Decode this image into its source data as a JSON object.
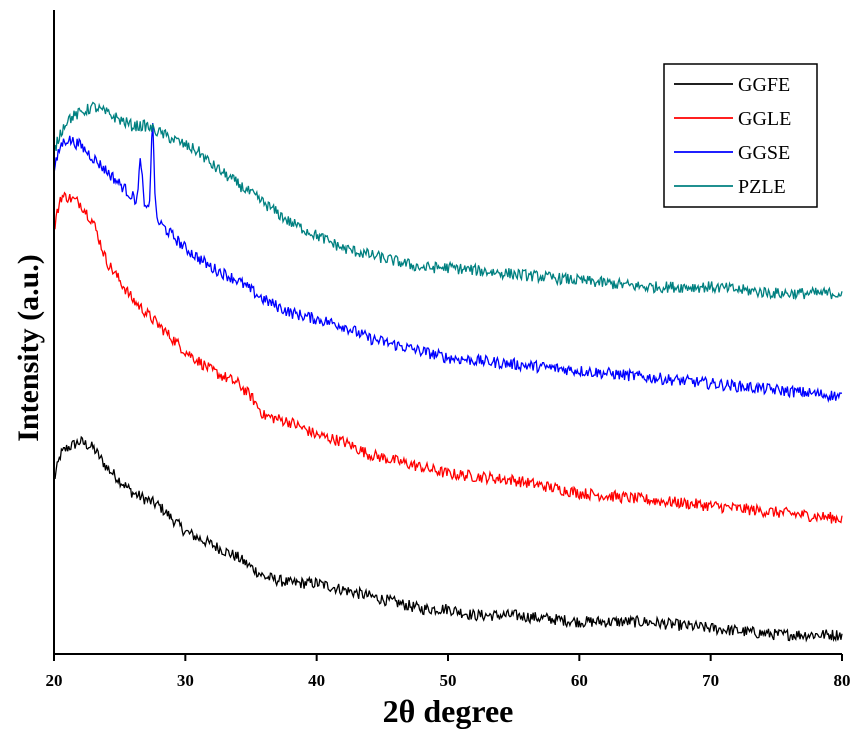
{
  "chart_data": {
    "type": "line",
    "title": "",
    "xlabel": "2θ degree",
    "ylabel": "Intensity (a.u.)",
    "xlim": [
      20,
      80
    ],
    "ylim": [
      0,
      1
    ],
    "x_ticks": [
      "20",
      "30",
      "40",
      "50",
      "60",
      "70",
      "80"
    ],
    "y_ticks_shown": false,
    "grid": false,
    "legend_position": "top-right",
    "series": [
      {
        "name": "GGFE",
        "color": "#000000",
        "points": [
          [
            20,
            0.27
          ],
          [
            20.5,
            0.31
          ],
          [
            21,
            0.32
          ],
          [
            22,
            0.33
          ],
          [
            23,
            0.32
          ],
          [
            24,
            0.29
          ],
          [
            25,
            0.27
          ],
          [
            26,
            0.25
          ],
          [
            27,
            0.24
          ],
          [
            28,
            0.23
          ],
          [
            29,
            0.21
          ],
          [
            30,
            0.19
          ],
          [
            32,
            0.17
          ],
          [
            34,
            0.15
          ],
          [
            36,
            0.12
          ],
          [
            38,
            0.11
          ],
          [
            40,
            0.11
          ],
          [
            42,
            0.1
          ],
          [
            44,
            0.09
          ],
          [
            46,
            0.08
          ],
          [
            48,
            0.07
          ],
          [
            50,
            0.07
          ],
          [
            52,
            0.06
          ],
          [
            55,
            0.06
          ],
          [
            60,
            0.05
          ],
          [
            65,
            0.05
          ],
          [
            70,
            0.04
          ],
          [
            75,
            0.03
          ],
          [
            80,
            0.03
          ]
        ],
        "peaks": []
      },
      {
        "name": "GGLE",
        "color": "#ff0000",
        "points": [
          [
            20,
            0.66
          ],
          [
            20.5,
            0.71
          ],
          [
            21,
            0.71
          ],
          [
            22,
            0.7
          ],
          [
            23,
            0.67
          ],
          [
            24,
            0.61
          ],
          [
            25,
            0.58
          ],
          [
            26,
            0.55
          ],
          [
            27,
            0.53
          ],
          [
            28,
            0.51
          ],
          [
            29,
            0.49
          ],
          [
            30,
            0.47
          ],
          [
            32,
            0.44
          ],
          [
            34,
            0.42
          ],
          [
            35,
            0.4
          ],
          [
            36,
            0.37
          ],
          [
            38,
            0.36
          ],
          [
            40,
            0.34
          ],
          [
            42,
            0.33
          ],
          [
            44,
            0.31
          ],
          [
            46,
            0.3
          ],
          [
            48,
            0.29
          ],
          [
            50,
            0.28
          ],
          [
            55,
            0.27
          ],
          [
            60,
            0.25
          ],
          [
            65,
            0.24
          ],
          [
            70,
            0.23
          ],
          [
            75,
            0.22
          ],
          [
            80,
            0.21
          ]
        ],
        "peaks": []
      },
      {
        "name": "GGSE",
        "color": "#0000ff",
        "points": [
          [
            20,
            0.75
          ],
          [
            20.5,
            0.79
          ],
          [
            21,
            0.8
          ],
          [
            22,
            0.79
          ],
          [
            23,
            0.77
          ],
          [
            24,
            0.75
          ],
          [
            25,
            0.73
          ],
          [
            26,
            0.71
          ],
          [
            27,
            0.69
          ],
          [
            28,
            0.67
          ],
          [
            29,
            0.65
          ],
          [
            30,
            0.63
          ],
          [
            32,
            0.6
          ],
          [
            34,
            0.58
          ],
          [
            36,
            0.55
          ],
          [
            38,
            0.53
          ],
          [
            40,
            0.52
          ],
          [
            42,
            0.51
          ],
          [
            44,
            0.49
          ],
          [
            46,
            0.48
          ],
          [
            48,
            0.47
          ],
          [
            50,
            0.46
          ],
          [
            55,
            0.45
          ],
          [
            60,
            0.44
          ],
          [
            65,
            0.43
          ],
          [
            70,
            0.42
          ],
          [
            75,
            0.41
          ],
          [
            80,
            0.4
          ]
        ],
        "peaks": [
          [
            26.6,
            0.07
          ],
          [
            27.5,
            0.14
          ]
        ]
      },
      {
        "name": "PZLE",
        "color": "#008080",
        "points": [
          [
            20,
            0.78
          ],
          [
            20.5,
            0.81
          ],
          [
            21,
            0.83
          ],
          [
            22,
            0.84
          ],
          [
            23,
            0.85
          ],
          [
            24,
            0.84
          ],
          [
            25,
            0.83
          ],
          [
            26,
            0.82
          ],
          [
            27,
            0.82
          ],
          [
            28,
            0.81
          ],
          [
            29,
            0.8
          ],
          [
            30,
            0.79
          ],
          [
            31,
            0.78
          ],
          [
            32,
            0.76
          ],
          [
            34,
            0.73
          ],
          [
            36,
            0.7
          ],
          [
            38,
            0.67
          ],
          [
            40,
            0.65
          ],
          [
            42,
            0.63
          ],
          [
            44,
            0.62
          ],
          [
            46,
            0.61
          ],
          [
            48,
            0.6
          ],
          [
            50,
            0.6
          ],
          [
            55,
            0.59
          ],
          [
            60,
            0.58
          ],
          [
            65,
            0.57
          ],
          [
            70,
            0.57
          ],
          [
            75,
            0.56
          ],
          [
            80,
            0.56
          ]
        ],
        "peaks": []
      }
    ]
  }
}
